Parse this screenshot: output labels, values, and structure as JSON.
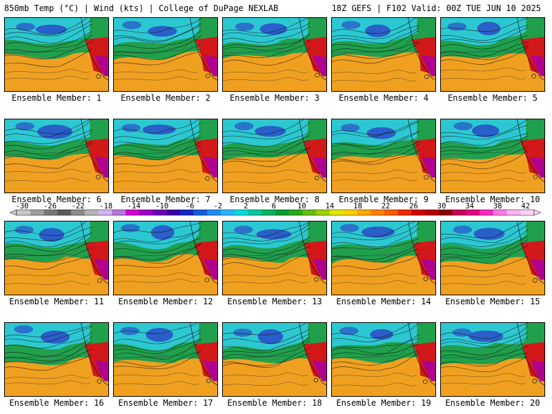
{
  "header": {
    "title_left": "850mb Temp (°C) | Wind (kts) | College of DuPage NEXLAB",
    "title_right": "18Z GEFS | F102 Valid: 00Z TUE JUN 10 2025"
  },
  "map_type": "filled temperature contour map with wind streamlines, 4x5 ensemble panel grid",
  "members": [
    {
      "label": "Ensemble Member: 1"
    },
    {
      "label": "Ensemble Member: 2"
    },
    {
      "label": "Ensemble Member: 3"
    },
    {
      "label": "Ensemble Member: 4"
    },
    {
      "label": "Ensemble Member: 5"
    },
    {
      "label": "Ensemble Member: 6"
    },
    {
      "label": "Ensemble Member: 7"
    },
    {
      "label": "Ensemble Member: 8"
    },
    {
      "label": "Ensemble Member: 9"
    },
    {
      "label": "Ensemble Member: 10"
    },
    {
      "label": "Ensemble Member: 11"
    },
    {
      "label": "Ensemble Member: 12"
    },
    {
      "label": "Ensemble Member: 13"
    },
    {
      "label": "Ensemble Member: 14"
    },
    {
      "label": "Ensemble Member: 15"
    },
    {
      "label": "Ensemble Member: 16"
    },
    {
      "label": "Ensemble Member: 17"
    },
    {
      "label": "Ensemble Member: 18"
    },
    {
      "label": "Ensemble Member: 19"
    },
    {
      "label": "Ensemble Member: 20"
    }
  ],
  "colorbar": {
    "ticks": [
      "-30",
      "-26",
      "-22",
      "-18",
      "-14",
      "-10",
      "-6",
      "-2",
      "2",
      "6",
      "10",
      "14",
      "18",
      "22",
      "26",
      "30",
      "34",
      "38",
      "42"
    ],
    "colors": [
      "#c8c8c8",
      "#a0a0a0",
      "#787878",
      "#5a5a5a",
      "#8c8c8c",
      "#b4b4b4",
      "#d2b4f0",
      "#b478dc",
      "#d200d2",
      "#a000c8",
      "#6e00b4",
      "#3c00a0",
      "#1428c8",
      "#145adc",
      "#1e8cf0",
      "#28b4ff",
      "#00dcdc",
      "#00c8a0",
      "#00b464",
      "#00a032",
      "#28aa14",
      "#64be14",
      "#a0d200",
      "#e6e600",
      "#ffd200",
      "#ffaa00",
      "#ff8200",
      "#ff5a00",
      "#f02800",
      "#d20000",
      "#b40000",
      "#8c0000",
      "#c8005a",
      "#e60082",
      "#ff28c8",
      "#ff78e6",
      "#ffb4f0",
      "#ffd2fa"
    ]
  },
  "palette": {
    "cold": "#2a5ec8",
    "cool": "#2cc8d2",
    "mild": "#20a04c",
    "warm": "#f0a020",
    "hot": "#d21818",
    "extreme": "#b00090"
  }
}
